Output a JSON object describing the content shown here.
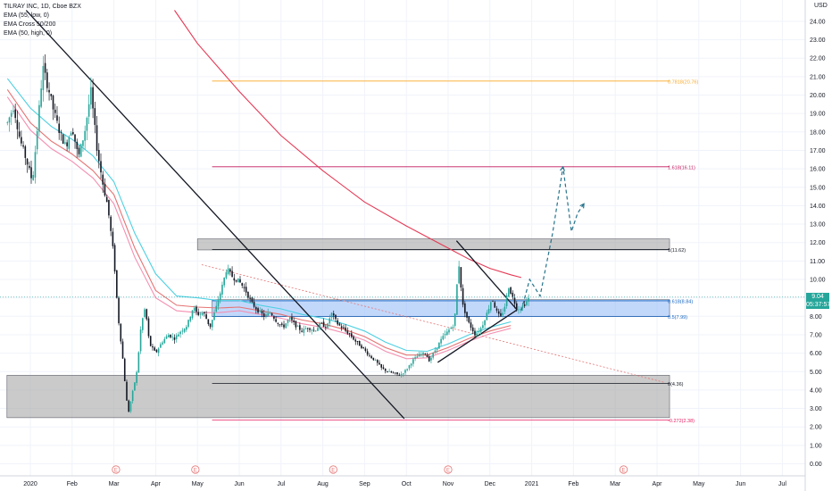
{
  "chart_data": {
    "type": "candlestick",
    "legend": [
      {
        "label": "TILRAY INC, 1D, Cboe BZX",
        "color": "#131722"
      },
      {
        "label": "EMA (55, low, 0)",
        "color": "#26c6da"
      },
      {
        "label": "EMA Cross 50/200",
        "color": "#ef5350"
      },
      {
        "label": "EMA (50, high, 0)",
        "color": "#ef9a9a"
      }
    ],
    "currency": "USD",
    "ylim": [
      -0.6,
      25
    ],
    "y_ticks": [
      0.0,
      1.0,
      2.0,
      3.0,
      4.0,
      5.0,
      6.0,
      7.0,
      8.0,
      9.0,
      10.0,
      11.0,
      12.0,
      13.0,
      14.0,
      15.0,
      16.0,
      17.0,
      18.0,
      19.0,
      20.0,
      21.0,
      22.0,
      23.0,
      24.0
    ],
    "x_ticks": [
      {
        "label": "2020",
        "pos": 0
      },
      {
        "label": "Feb",
        "pos": 1
      },
      {
        "label": "Mar",
        "pos": 2
      },
      {
        "label": "Apr",
        "pos": 3
      },
      {
        "label": "May",
        "pos": 4
      },
      {
        "label": "Jun",
        "pos": 5
      },
      {
        "label": "Jul",
        "pos": 6
      },
      {
        "label": "Aug",
        "pos": 7
      },
      {
        "label": "Sep",
        "pos": 8
      },
      {
        "label": "Oct",
        "pos": 9
      },
      {
        "label": "Nov",
        "pos": 10
      },
      {
        "label": "Dec",
        "pos": 11
      },
      {
        "label": "2021",
        "pos": 12
      },
      {
        "label": "Feb",
        "pos": 13
      },
      {
        "label": "Mar",
        "pos": 14
      },
      {
        "label": "Apr",
        "pos": 15
      },
      {
        "label": "May",
        "pos": 16
      },
      {
        "label": "Jun",
        "pos": 17
      },
      {
        "label": "Jul",
        "pos": 18
      }
    ],
    "current_price": {
      "value": 9.04,
      "label": "9.04",
      "countdown": "05:37:57",
      "color": "#26a69a"
    },
    "fib_levels": [
      {
        "label": "0.7818(20.76)",
        "value": 20.76,
        "color": "#f9a825",
        "from": 4.35,
        "to": 15.3
      },
      {
        "label": "1.618(16.11)",
        "value": 16.11,
        "color": "#c2185b",
        "from": 4.35,
        "to": 15.3
      },
      {
        "label": "1(11.62)",
        "value": 11.62,
        "color": "#131722",
        "from": 4.35,
        "to": 15.3
      },
      {
        "label": "0.618(8.84)",
        "value": 8.84,
        "color": "#1565c0",
        "from": 4.35,
        "to": 15.3
      },
      {
        "label": "0.5(7.99)",
        "value": 7.99,
        "color": "#1565c0",
        "from": 4.35,
        "to": 15.3
      },
      {
        "label": "0(4.36)",
        "value": 4.36,
        "color": "#131722",
        "from": 4.35,
        "to": 15.3
      },
      {
        "label": "-0.272(2.38)",
        "value": 2.38,
        "color": "#e91e63",
        "from": 4.35,
        "to": 15.3
      }
    ],
    "zones": [
      {
        "from": 4.0,
        "to": 15.3,
        "y_low": 11.6,
        "y_high": 12.2,
        "color": "#9e9e9e"
      },
      {
        "from": 4.35,
        "to": 15.3,
        "y_low": 8.0,
        "y_high": 8.9,
        "color": "#90b8f8"
      },
      {
        "from": -0.56,
        "to": 15.3,
        "y_low": 2.5,
        "y_high": 4.8,
        "color": "#9e9e9e"
      }
    ],
    "trendlines": [
      {
        "points": [
          [
            -0.1,
            24.6
          ],
          [
            8.95,
            2.45
          ]
        ],
        "color": "#131722",
        "style": "solid"
      },
      {
        "points": [
          [
            4.1,
            10.8
          ],
          [
            15.2,
            4.4
          ]
        ],
        "color": "#e57373",
        "style": "dotted"
      },
      {
        "points": [
          [
            10.2,
            12.1
          ],
          [
            11.65,
            8.35
          ]
        ],
        "color": "#131722",
        "style": "solid"
      },
      {
        "points": [
          [
            9.75,
            5.5
          ],
          [
            11.65,
            8.35
          ]
        ],
        "color": "#131722",
        "style": "solid"
      }
    ],
    "projection": [
      [
        11.75,
        8.3
      ],
      [
        11.95,
        10.0
      ],
      [
        12.2,
        9.1
      ],
      [
        12.5,
        12.5
      ],
      [
        12.75,
        16.1
      ],
      [
        12.95,
        12.6
      ],
      [
        13.1,
        13.6
      ],
      [
        13.25,
        14.1
      ]
    ],
    "projection_color": "#26738c",
    "earnings_markers": [
      2.05,
      3.95,
      7.25,
      10.0,
      14.2
    ],
    "earnings_marker_label": "E",
    "ema_series": [
      {
        "name": "EMA (55, low, 0)",
        "color": "#4dd0e1",
        "points": [
          [
            -0.55,
            20.9
          ],
          [
            0,
            19.3
          ],
          [
            0.5,
            18.3
          ],
          [
            1,
            17.6
          ],
          [
            1.5,
            16.7
          ],
          [
            2,
            15.3
          ],
          [
            2.5,
            12.5
          ],
          [
            3,
            10.3
          ],
          [
            3.5,
            9.1
          ],
          [
            4,
            9.0
          ],
          [
            4.5,
            8.85
          ],
          [
            5,
            8.85
          ],
          [
            5.5,
            8.6
          ],
          [
            6,
            8.4
          ],
          [
            6.5,
            8.1
          ],
          [
            7,
            7.9
          ],
          [
            7.5,
            7.6
          ],
          [
            8,
            7.2
          ],
          [
            8.5,
            6.6
          ],
          [
            9,
            6.15
          ],
          [
            9.5,
            6.1
          ],
          [
            10,
            6.5
          ],
          [
            10.5,
            7.0
          ],
          [
            11,
            7.4
          ],
          [
            11.5,
            7.7
          ]
        ]
      },
      {
        "name": "EMA Cross 50/200 (slow)",
        "color": "#e53955",
        "points": [
          [
            3.45,
            24.6
          ],
          [
            4,
            22.8
          ],
          [
            5,
            20.2
          ],
          [
            6,
            17.8
          ],
          [
            7,
            15.9
          ],
          [
            8,
            14.2
          ],
          [
            9,
            12.9
          ],
          [
            9.5,
            12.3
          ],
          [
            10,
            11.7
          ],
          [
            10.5,
            11.1
          ],
          [
            11,
            10.6
          ],
          [
            11.5,
            10.25
          ],
          [
            11.75,
            10.1
          ]
        ]
      },
      {
        "name": "EMA Cross 50/200 (fast)",
        "color": "#e57373",
        "points": [
          [
            -0.55,
            20.3
          ],
          [
            0,
            18.5
          ],
          [
            0.5,
            17.5
          ],
          [
            1,
            16.8
          ],
          [
            1.5,
            15.9
          ],
          [
            2,
            14.6
          ],
          [
            2.5,
            11.7
          ],
          [
            3,
            9.4
          ],
          [
            3.5,
            8.6
          ],
          [
            4,
            8.5
          ],
          [
            4.5,
            8.45
          ],
          [
            5,
            8.5
          ],
          [
            5.5,
            8.3
          ],
          [
            6,
            8.1
          ],
          [
            6.5,
            7.8
          ],
          [
            7,
            7.6
          ],
          [
            7.5,
            7.3
          ],
          [
            8,
            6.9
          ],
          [
            8.5,
            6.3
          ],
          [
            9,
            5.9
          ],
          [
            9.5,
            5.9
          ],
          [
            10,
            6.3
          ],
          [
            10.5,
            6.8
          ],
          [
            11,
            7.2
          ],
          [
            11.5,
            7.5
          ]
        ]
      },
      {
        "name": "EMA (50, high, 0)",
        "color": "#f48fb1",
        "points": [
          [
            -0.55,
            19.9
          ],
          [
            0,
            18.1
          ],
          [
            0.5,
            17.1
          ],
          [
            1,
            16.4
          ],
          [
            1.5,
            15.5
          ],
          [
            2,
            14.1
          ],
          [
            2.5,
            11.2
          ],
          [
            3,
            9.0
          ],
          [
            3.5,
            8.3
          ],
          [
            4,
            8.2
          ],
          [
            4.5,
            8.2
          ],
          [
            5,
            8.3
          ],
          [
            5.5,
            8.1
          ],
          [
            6,
            7.9
          ],
          [
            6.5,
            7.6
          ],
          [
            7,
            7.4
          ],
          [
            7.5,
            7.1
          ],
          [
            8,
            6.7
          ],
          [
            8.5,
            6.1
          ],
          [
            9,
            5.7
          ],
          [
            9.5,
            5.75
          ],
          [
            10,
            6.15
          ],
          [
            10.5,
            6.65
          ],
          [
            11,
            7.05
          ],
          [
            11.5,
            7.35
          ]
        ]
      }
    ],
    "price_path": [
      [
        -0.55,
        18.5
      ],
      [
        -0.4,
        19.4
      ],
      [
        -0.25,
        17.6
      ],
      [
        -0.1,
        16.5
      ],
      [
        0.05,
        15.3
      ],
      [
        0.2,
        19.0
      ],
      [
        0.3,
        21.5
      ],
      [
        0.45,
        20.2
      ],
      [
        0.55,
        19.2
      ],
      [
        0.7,
        18.0
      ],
      [
        0.85,
        17.2
      ],
      [
        1.0,
        18.3
      ],
      [
        1.15,
        16.6
      ],
      [
        1.3,
        18.0
      ],
      [
        1.45,
        20.2
      ],
      [
        1.6,
        17.0
      ],
      [
        1.75,
        15.0
      ],
      [
        1.85,
        14.0
      ],
      [
        2.0,
        11.2
      ],
      [
        2.1,
        8.0
      ],
      [
        2.2,
        6.0
      ],
      [
        2.3,
        3.5
      ],
      [
        2.35,
        2.8
      ],
      [
        2.45,
        3.9
      ],
      [
        2.55,
        5.0
      ],
      [
        2.65,
        7.5
      ],
      [
        2.75,
        8.5
      ],
      [
        2.85,
        6.5
      ],
      [
        3.0,
        6.0
      ],
      [
        3.15,
        6.6
      ],
      [
        3.3,
        7.0
      ],
      [
        3.45,
        6.8
      ],
      [
        3.6,
        7.2
      ],
      [
        3.75,
        7.5
      ],
      [
        3.9,
        8.5
      ],
      [
        4.0,
        8.1
      ],
      [
        4.15,
        8.2
      ],
      [
        4.3,
        7.4
      ],
      [
        4.45,
        8.5
      ],
      [
        4.6,
        9.7
      ],
      [
        4.7,
        10.6
      ],
      [
        4.85,
        10.1
      ],
      [
        5.0,
        9.9
      ],
      [
        5.15,
        9.4
      ],
      [
        5.3,
        8.7
      ],
      [
        5.45,
        8.3
      ],
      [
        5.6,
        8.0
      ],
      [
        5.75,
        8.2
      ],
      [
        5.9,
        7.7
      ],
      [
        6.05,
        7.4
      ],
      [
        6.2,
        7.9
      ],
      [
        6.35,
        7.5
      ],
      [
        6.5,
        7.2
      ],
      [
        6.65,
        7.4
      ],
      [
        6.8,
        7.2
      ],
      [
        6.95,
        7.6
      ],
      [
        7.1,
        7.4
      ],
      [
        7.2,
        8.2
      ],
      [
        7.35,
        7.6
      ],
      [
        7.5,
        7.3
      ],
      [
        7.65,
        7.0
      ],
      [
        7.8,
        6.6
      ],
      [
        7.95,
        6.3
      ],
      [
        8.1,
        5.9
      ],
      [
        8.25,
        5.6
      ],
      [
        8.4,
        5.2
      ],
      [
        8.55,
        5.0
      ],
      [
        8.7,
        4.9
      ],
      [
        8.85,
        4.8
      ],
      [
        9.0,
        5.1
      ],
      [
        9.15,
        5.6
      ],
      [
        9.3,
        5.9
      ],
      [
        9.45,
        6.0
      ],
      [
        9.55,
        5.6
      ],
      [
        9.7,
        6.2
      ],
      [
        9.85,
        6.8
      ],
      [
        10.0,
        7.2
      ],
      [
        10.15,
        7.6
      ],
      [
        10.25,
        11.0
      ],
      [
        10.35,
        8.6
      ],
      [
        10.5,
        7.6
      ],
      [
        10.65,
        7.0
      ],
      [
        10.8,
        7.4
      ],
      [
        10.95,
        8.3
      ],
      [
        11.05,
        9.0
      ],
      [
        11.15,
        8.3
      ],
      [
        11.25,
        7.9
      ],
      [
        11.35,
        8.5
      ],
      [
        11.45,
        9.6
      ],
      [
        11.55,
        9.0
      ],
      [
        11.65,
        8.4
      ],
      [
        11.75,
        8.5
      ],
      [
        11.85,
        8.7
      ],
      [
        11.95,
        9.04
      ]
    ]
  }
}
